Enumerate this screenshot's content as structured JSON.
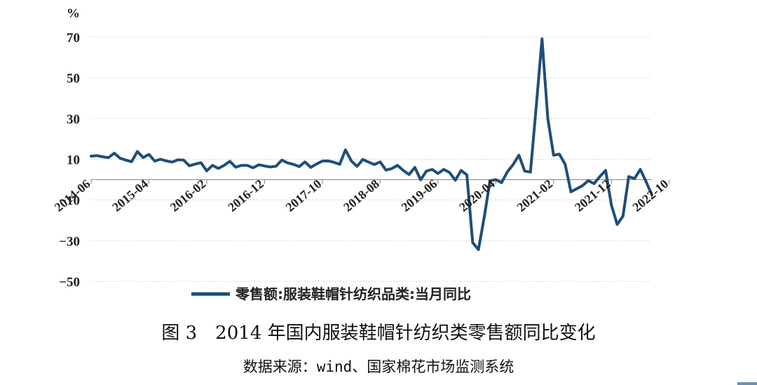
{
  "chart_data": {
    "type": "line",
    "unit_label": "%",
    "ylim": [
      -50,
      70
    ],
    "yticks": [
      70,
      50,
      30,
      10,
      -10,
      -30,
      -50
    ],
    "grid": true,
    "x_tick_labels": [
      "2014-06",
      "2015-04",
      "2016-02",
      "2016-12",
      "2017-10",
      "2018-08",
      "2019-06",
      "2020-04",
      "2021-02",
      "2021-12",
      "2022-10"
    ],
    "legend_position": "bottom",
    "series": [
      {
        "name": "零售额:服装鞋帽针纺织品类:当月同比",
        "color": "#1f4e79",
        "x_start": "2014-06",
        "x_end": "2022-10",
        "values": [
          11.5,
          11.8,
          11.2,
          10.8,
          13.0,
          10.5,
          9.6,
          8.8,
          13.8,
          10.8,
          12.4,
          9.1,
          10.0,
          9.2,
          8.6,
          9.7,
          9.6,
          6.8,
          7.6,
          8.3,
          4.3,
          7.0,
          5.5,
          7.0,
          9.0,
          6.1,
          7.0,
          7.0,
          5.8,
          7.3,
          6.7,
          6.2,
          6.6,
          9.6,
          8.2,
          7.5,
          6.4,
          8.7,
          6.0,
          7.7,
          9.1,
          9.2,
          8.5,
          7.5,
          14.6,
          9.2,
          6.5,
          9.9,
          8.6,
          7.4,
          8.7,
          4.7,
          5.4,
          7.0,
          4.5,
          2.5,
          6.0,
          -0.1,
          4.2,
          5.0,
          3.0,
          5.0,
          3.5,
          -0.3,
          4.5,
          2.3,
          -30.9,
          -34.4,
          -18.5,
          -0.6,
          0.0,
          -1.5,
          3.8,
          7.4,
          12.0,
          4.2,
          3.7,
          36.0,
          69.1,
          30.0,
          12.0,
          12.5,
          7.5,
          -6.0,
          -4.5,
          -3.0,
          -0.5,
          -2.0,
          1.5,
          4.5,
          -12.5,
          -22.0,
          -18.0,
          1.5,
          0.5,
          5.0,
          -1.0,
          -7.5
        ]
      }
    ]
  },
  "caption": "图 3　2014 年国内服装鞋帽针纺织类零售额同比变化",
  "source": "数据来源：wind、国家棉花市场监测系统"
}
